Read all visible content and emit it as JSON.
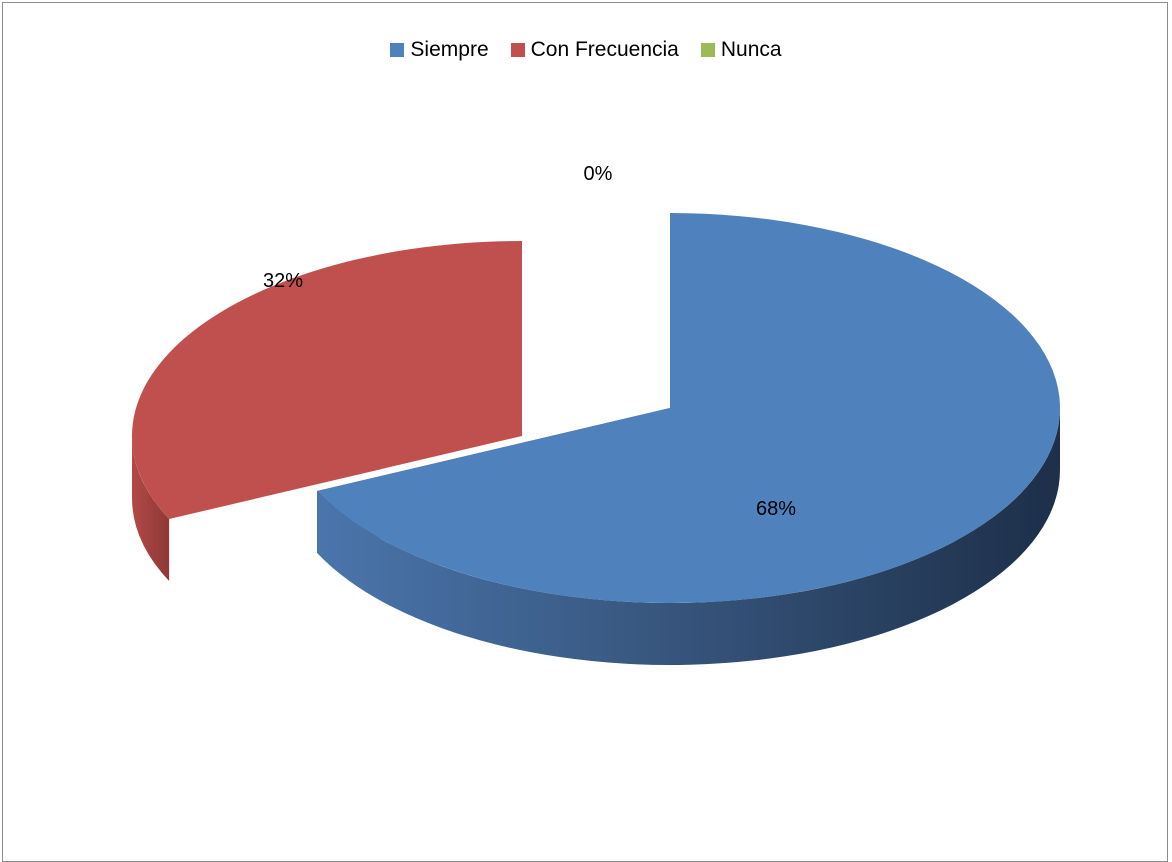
{
  "chart_data": {
    "type": "pie",
    "style": "3d-exploded",
    "legend_position": "top",
    "categories": [
      "Siempre",
      "Con Frecuencia",
      "Nunca"
    ],
    "values": [
      68,
      32,
      0
    ],
    "data_labels": [
      "68%",
      "32%",
      "0%"
    ],
    "colors": [
      "#4f81bd",
      "#c0504d",
      "#9bbb59"
    ],
    "title": ""
  }
}
